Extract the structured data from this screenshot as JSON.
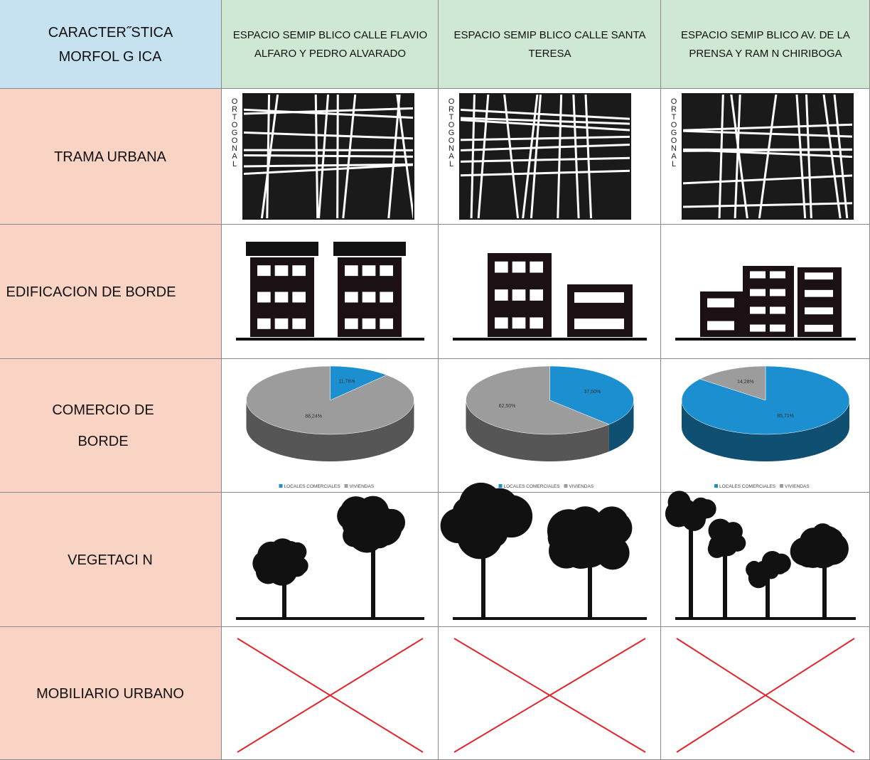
{
  "table": {
    "header": [
      "CARACTER˝STICA MORFOL G ICA",
      "ESPACIO SEMIP BLICO CALLE FLAVIO ALFARO Y PEDRO ALVARADO",
      "ESPACIO SEMIP BLICO CALLE SANTA TERESA",
      "ESPACIO SEMIP BLICO AV. DE LA PRENSA Y RAM N CHIRIBOGA"
    ],
    "rows": [
      {
        "label": "TRAMA URBANA",
        "cells": [
          "ORTOGONAL",
          "ORTOGONAL",
          "ORTOGONAL"
        ]
      },
      {
        "label": "EDIFICACION DE BORDE"
      },
      {
        "label": "COMERCIO DE BORDE",
        "charts": [
          {
            "type": "pie",
            "categories": [
              "LOCALES COMERCIALES",
              "VIVIENDAS"
            ],
            "values": [
              11.76,
              88.24
            ],
            "value_labels": [
              "11,76%",
              "88,24%"
            ],
            "colors": [
              "#1b8fcf",
              "#9c9c9c"
            ]
          },
          {
            "type": "pie",
            "categories": [
              "LOCALES COMERCIALES",
              "VIVIENDAS"
            ],
            "values": [
              37.5,
              62.5
            ],
            "value_labels": [
              "37,50%",
              "62,50%"
            ],
            "colors": [
              "#1b8fcf",
              "#9c9c9c"
            ]
          },
          {
            "type": "pie",
            "categories": [
              "LOCALES COMERCIALES",
              "VIVIENDAS"
            ],
            "values": [
              85.71,
              14.28
            ],
            "value_labels": [
              "85,71%",
              "14,28%"
            ],
            "colors": [
              "#1b8fcf",
              "#9c9c9c"
            ]
          }
        ]
      },
      {
        "label": "VEGETACI N"
      },
      {
        "label": "MOBILIARIO URBANO"
      }
    ]
  }
}
